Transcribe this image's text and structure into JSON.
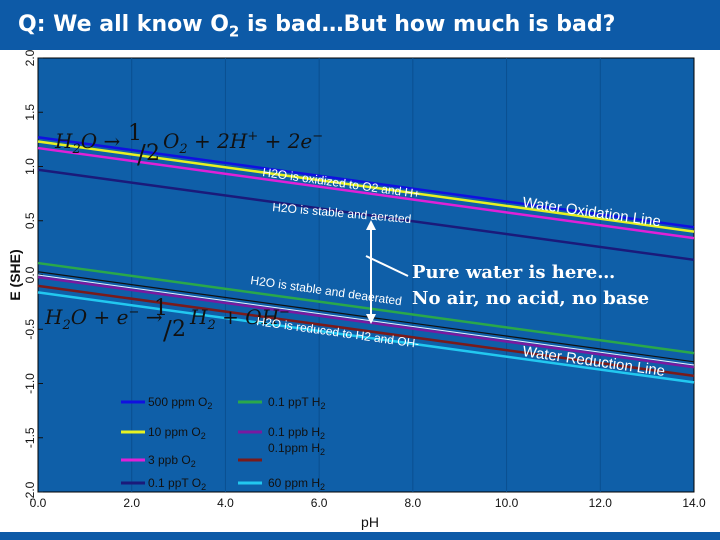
{
  "title": {
    "prefix": "Q: We all know O",
    "sub": "2",
    "suffix": " is bad…But how much is bad?"
  },
  "colors": {
    "plot_bg": "#0f5fa8",
    "title_bg": "#0d5aa7",
    "black": "#111111",
    "blue_500ppm": "#1010e0",
    "yellow_10ppm": "#e6f222",
    "magenta_3ppb": "#e020d8",
    "navy_01ppt": "#1a1a7a",
    "green_01pptH2": "#2aa84a",
    "purple_01ppbH2": "#7a1aa0",
    "darkred_01ppmH2": "#7a1a1a",
    "cyan_60ppmH2": "#22c8f0",
    "water_line": "#e8f0ff"
  },
  "chart_data": {
    "type": "line",
    "xlabel": "pH",
    "ylabel": "E (SHE)",
    "xlim": [
      0,
      14
    ],
    "ylim": [
      -2,
      2
    ],
    "x_ticks": [
      "0.0",
      "2.0",
      "4.0",
      "6.0",
      "8.0",
      "10.0",
      "12.0",
      "14.0"
    ],
    "y_ticks": [
      "2.0",
      "1.5",
      "1.0",
      "0.5",
      "0.0",
      "-0.5",
      "-1.0",
      "-1.5",
      "-2.0"
    ],
    "series": [
      {
        "name": "500 ppm O2",
        "label_main": "500 ppm O",
        "label_sub": "2",
        "color": "#1010e0",
        "x": [
          0,
          14
        ],
        "y": [
          1.27,
          0.44
        ]
      },
      {
        "name": "10 ppm O2",
        "label_main": "10 ppm O",
        "label_sub": "2",
        "color": "#e6f222",
        "x": [
          0,
          14
        ],
        "y": [
          1.23,
          0.4
        ]
      },
      {
        "name": "3 ppb O2",
        "label_main": "3 ppb O",
        "label_sub": "2",
        "color": "#e020d8",
        "x": [
          0,
          14
        ],
        "y": [
          1.17,
          0.34
        ]
      },
      {
        "name": "0.1 ppT O2",
        "label_main": "0.1 ppT O",
        "label_sub": "2",
        "color": "#1a1a7a",
        "x": [
          0,
          14
        ],
        "y": [
          0.97,
          0.14
        ]
      },
      {
        "name": "0.1 ppT H2",
        "label_main": "0.1 ppT H",
        "label_sub": "2",
        "color": "#2aa84a",
        "x": [
          0,
          14
        ],
        "y": [
          0.11,
          -0.72
        ]
      },
      {
        "name": "0.1 ppb H2",
        "label_main": "0.1 ppb H",
        "label_sub": "2",
        "color": "#7a1aa0",
        "x": [
          0,
          14
        ],
        "y": [
          -0.02,
          -0.85
        ]
      },
      {
        "name": "0.1ppm H2",
        "label_main": "0.1ppm H",
        "label_sub": "2",
        "color": "#7a1a1a",
        "x": [
          0,
          14
        ],
        "y": [
          -0.1,
          -0.93
        ]
      },
      {
        "name": "60 ppm H2",
        "label_main": "60 ppm H",
        "label_sub": "2",
        "color": "#22c8f0",
        "x": [
          0,
          14
        ],
        "y": [
          -0.16,
          -0.99
        ]
      }
    ],
    "water_lines": [
      {
        "x": [
          0,
          14
        ],
        "y": [
          1.23,
          0.4
        ]
      },
      {
        "x": [
          0,
          14
        ],
        "y": [
          0.0,
          -0.83
        ]
      }
    ],
    "annotations": {
      "oxidized": "H2O is oxidized to O2 and H+",
      "stable_aerated": "H2O is stable and aerated",
      "stable_deaerated": "H2O is stable and deaerated",
      "reduced": "H2O is reduced to H2 and OH-",
      "water_oxidation": "Water Oxidation Line",
      "water_reduction": "Water Reduction Line",
      "pure_water_line1": "Pure water is here…",
      "pure_water_line2": "No air, no acid, no base"
    }
  }
}
